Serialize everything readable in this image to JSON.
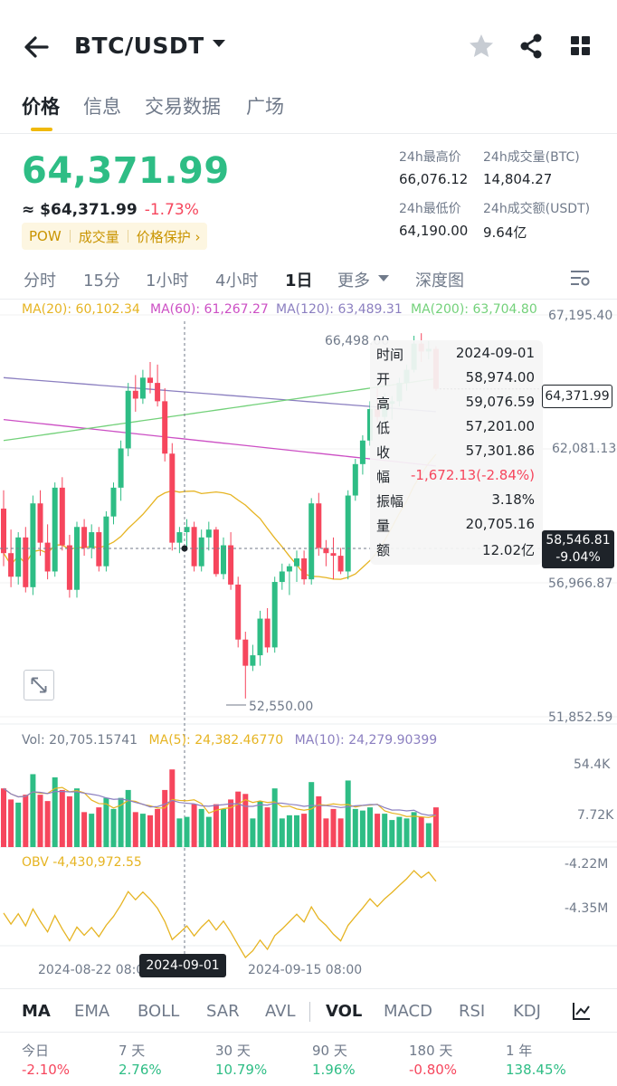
{
  "header": {
    "pair": "BTC/USDT"
  },
  "tabs": [
    "价格",
    "信息",
    "交易数据",
    "广场"
  ],
  "price": {
    "last": "64,371.99",
    "usd": "≈ $64,371.99",
    "change_pct": "-1.73%",
    "badges": [
      "POW",
      "成交量",
      "价格保护 ›"
    ]
  },
  "stats": {
    "high_label": "24h最高价",
    "high": "66,076.12",
    "vol_btc_label": "24h成交量(BTC)",
    "vol_btc": "14,804.27",
    "low_label": "24h最低价",
    "low": "64,190.00",
    "vol_usdt_label": "24h成交额(USDT)",
    "vol_usdt": "9.64亿"
  },
  "periods": [
    "分时",
    "15分",
    "1小时",
    "4小时",
    "1日",
    "更多",
    "深度图"
  ],
  "chart_legend": {
    "ma20": "MA(20): 60,102.34",
    "ma60": "MA(60): 61,267.27",
    "ma120": "MA(120): 63,489.31",
    "ma200": "MA(200): 63,704.80"
  },
  "price_axis": [
    "67,195.40",
    "62,081.13",
    "56,966.87",
    "51,852.59"
  ],
  "annotations": {
    "max": "66,498.00",
    "min": "52,550.00"
  },
  "price_tag": "64,371.99",
  "cross_tag": {
    "price": "58,546.81",
    "pct": "-9.04%"
  },
  "tooltip": [
    {
      "k": "时间",
      "v": "2024-09-01"
    },
    {
      "k": "开",
      "v": "58,974.00"
    },
    {
      "k": "高",
      "v": "59,076.59"
    },
    {
      "k": "低",
      "v": "57,201.00"
    },
    {
      "k": "收",
      "v": "57,301.86"
    },
    {
      "k": "幅",
      "v": "-1,672.13(-2.84%)"
    },
    {
      "k": "振幅",
      "v": "3.18%"
    },
    {
      "k": "量",
      "v": "20,705.16"
    },
    {
      "k": "额",
      "v": "12.02亿"
    }
  ],
  "volume": {
    "vol": "Vol: 20,705.15741",
    "ma5": "MA(5): 24,382.46770",
    "ma10": "MA(10): 24,279.90399",
    "axis_top": "54.4K",
    "axis_bottom": "7.72K"
  },
  "obv": {
    "label": "OBV -4,430,972.55",
    "axis_top": "-4.22M",
    "axis_mid": "-4.35M"
  },
  "time_axis": [
    "2024-08-22 08:00",
    "2024-09-15 08:00"
  ],
  "date_tag": "2024-09-01",
  "indicators": [
    "MA",
    "EMA",
    "BOLL",
    "SAR",
    "AVL",
    "VOL",
    "MACD",
    "RSI",
    "KDJ"
  ],
  "performance": [
    {
      "label": "今日",
      "value": "-2.10%"
    },
    {
      "label": "7 天",
      "value": "2.76%"
    },
    {
      "label": "30 天",
      "value": "10.79%"
    },
    {
      "label": "90 天",
      "value": "1.96%"
    },
    {
      "label": "180 天",
      "value": "-0.80%"
    },
    {
      "label": "1 年",
      "value": "138.45%"
    }
  ],
  "colors": {
    "up": "#2ebd85",
    "down": "#f6465d",
    "accent": "#f0b90b",
    "ma20": "#e6b422",
    "ma60": "#cc4fc4",
    "ma120": "#8b7fc0",
    "ma200": "#73d17a"
  },
  "chart_data": {
    "type": "candlestick",
    "price_range": [
      51852.59,
      67195.4
    ],
    "candles": [
      [
        59800,
        60500,
        57600,
        58100
      ],
      [
        58100,
        59000,
        56800,
        57200
      ],
      [
        57200,
        58900,
        56900,
        58700
      ],
      [
        58700,
        59100,
        56600,
        56800
      ],
      [
        56800,
        60300,
        56500,
        60000
      ],
      [
        60000,
        60500,
        58000,
        58500
      ],
      [
        58500,
        59200,
        57100,
        57400
      ],
      [
        57400,
        60800,
        57200,
        60600
      ],
      [
        60600,
        61000,
        58200,
        58400
      ],
      [
        58400,
        58800,
        56400,
        56700
      ],
      [
        56700,
        59300,
        56400,
        59100
      ],
      [
        59100,
        59400,
        58000,
        58300
      ],
      [
        58300,
        59200,
        57900,
        58900
      ],
      [
        58900,
        59100,
        57400,
        57600
      ],
      [
        57600,
        59700,
        57400,
        59500
      ],
      [
        59500,
        60800,
        59200,
        60600
      ],
      [
        60600,
        62400,
        60100,
        62100
      ],
      [
        62100,
        64600,
        61800,
        64300
      ],
      [
        64300,
        64900,
        63500,
        64000
      ],
      [
        64000,
        65100,
        63800,
        64800
      ],
      [
        64800,
        65400,
        64200,
        64600
      ],
      [
        64600,
        65300,
        63700,
        63900
      ],
      [
        63900,
        64400,
        61600,
        61900
      ],
      [
        61900,
        62300,
        58200,
        58500
      ],
      [
        58500,
        59100,
        58100,
        58900
      ],
      [
        58900,
        59400,
        58300,
        59100
      ],
      [
        59100,
        59300,
        57400,
        57600
      ],
      [
        57600,
        59000,
        57400,
        58700
      ],
      [
        58700,
        59300,
        58200,
        59000
      ],
      [
        59000,
        59100,
        57200,
        57300
      ],
      [
        57300,
        58700,
        57100,
        58400
      ],
      [
        58400,
        58900,
        56700,
        56900
      ],
      [
        56900,
        57200,
        54500,
        54800
      ],
      [
        54800,
        55100,
        52550,
        53800
      ],
      [
        53800,
        54600,
        53600,
        54200
      ],
      [
        54200,
        55900,
        53800,
        55600
      ],
      [
        55600,
        56000,
        54300,
        54500
      ],
      [
        54500,
        57200,
        54300,
        57000
      ],
      [
        57000,
        57700,
        56700,
        57400
      ],
      [
        57400,
        57700,
        56500,
        57600
      ],
      [
        57600,
        58200,
        57000,
        57900
      ],
      [
        57900,
        58200,
        56900,
        57100
      ],
      [
        57100,
        60200,
        56900,
        60000
      ],
      [
        60000,
        60400,
        58000,
        58300
      ],
      [
        58300,
        58600,
        57600,
        58100
      ],
      [
        58100,
        58700,
        57100,
        58000
      ],
      [
        58000,
        58300,
        57300,
        57400
      ],
      [
        57400,
        60500,
        57100,
        60300
      ],
      [
        60300,
        61700,
        60100,
        61500
      ],
      [
        61500,
        62600,
        61100,
        62400
      ],
      [
        62400,
        63900,
        62200,
        63600
      ],
      [
        63600,
        64400,
        63100,
        63300
      ],
      [
        63300,
        64200,
        62900,
        63800
      ],
      [
        63800,
        64100,
        63200,
        63900
      ],
      [
        63900,
        64800,
        63700,
        64600
      ],
      [
        64600,
        65300,
        64300,
        65100
      ],
      [
        65100,
        66400,
        65000,
        66100
      ],
      [
        66100,
        66498,
        65400,
        65800
      ],
      [
        65800,
        66200,
        65500,
        65900
      ],
      [
        65900,
        66000,
        64300,
        64371.99
      ]
    ],
    "series": [
      {
        "name": "MA(20)",
        "last": 60102.34
      },
      {
        "name": "MA(60)",
        "last": 61267.27
      },
      {
        "name": "MA(120)",
        "last": 63489.31
      },
      {
        "name": "MA(200)",
        "last": 63704.8
      }
    ],
    "volume_range": [
      7720,
      54400
    ],
    "obv_range": [
      -4.4,
      -4.18
    ]
  }
}
